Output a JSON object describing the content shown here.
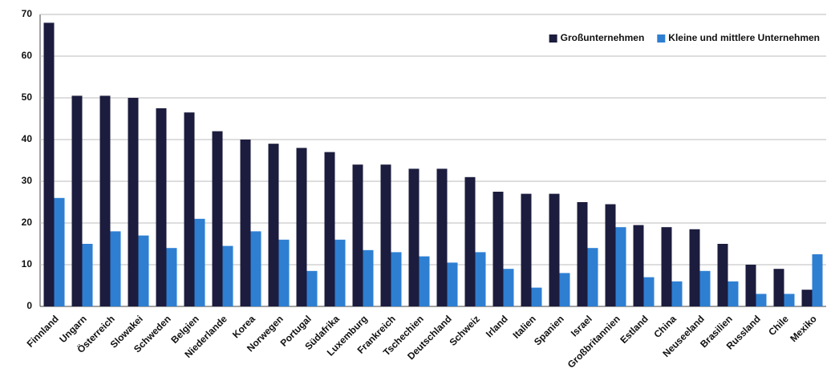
{
  "chart_data": {
    "type": "bar",
    "categories": [
      "Finnland",
      "Ungarn",
      "Österreich",
      "Slowakei",
      "Schweden",
      "Belgien",
      "Niederlande",
      "Korea",
      "Norwegen",
      "Portugal",
      "Südafrika",
      "Luxemburg",
      "Frankreich",
      "Tschechien",
      "Deutschland",
      "Schweiz",
      "Irland",
      "Italien",
      "Spanien",
      "Israel",
      "Großbritannien",
      "Estland",
      "China",
      "Neuseeland",
      "Brasilien",
      "Russland",
      "Chile",
      "Mexiko"
    ],
    "series": [
      {
        "name": "Großunternehmen",
        "color": "#1c1c3e",
        "values": [
          68,
          50.5,
          50.5,
          50,
          47.5,
          46.5,
          42,
          40,
          39,
          38,
          37,
          34,
          34,
          33,
          33,
          31,
          27.5,
          27,
          27,
          25,
          24.5,
          19.5,
          19,
          18.5,
          15,
          10,
          9,
          4
        ]
      },
      {
        "name": "Kleine und mittlere Unternehmen",
        "color": "#2e7fd2",
        "values": [
          26,
          15,
          18,
          17,
          14,
          21,
          14.5,
          18,
          16,
          8.5,
          16,
          13.5,
          13,
          12,
          10.5,
          13,
          9,
          4.5,
          8,
          14,
          19,
          7,
          6,
          8.5,
          6,
          3,
          3,
          12.5
        ]
      }
    ],
    "ylim": [
      0,
      70
    ],
    "yticks": [
      0,
      10,
      20,
      30,
      40,
      50,
      60,
      70
    ],
    "grid": true,
    "legend": "top-right"
  }
}
